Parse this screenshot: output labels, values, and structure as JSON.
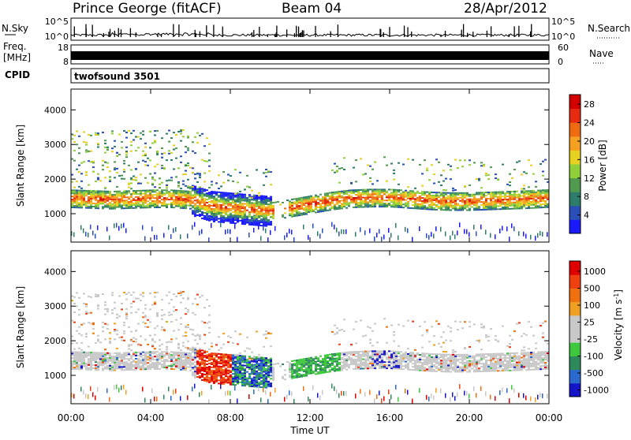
{
  "header": {
    "station": "Prince George (fitACF)",
    "beam": "Beam 04",
    "date": "28/Apr/2012"
  },
  "strips": {
    "nsky_label": "N.Sky",
    "nsearch_label": "N.Search",
    "nsky_ticks": [
      "10^5",
      "10^0"
    ],
    "nsearch_ticks": [
      "10^5",
      "10^0"
    ],
    "freq_label_1": "Freq.",
    "freq_label_2": "[MHz]",
    "freq_ticks": [
      "18",
      "8"
    ],
    "nave_label": "Nave",
    "nave_ticks": [
      "60",
      "0"
    ],
    "cpid_label": "CPID",
    "cpid_value": "twofsound 3501"
  },
  "chart_data": [
    {
      "type": "heatmap",
      "name": "power-panel",
      "ylabel": "Slant Range [km]",
      "x_ticks": [
        "00:00",
        "04:00",
        "08:00",
        "12:00",
        "16:00",
        "20:00",
        "00:00"
      ],
      "xlim_hours": [
        0,
        24
      ],
      "y_ticks": [
        1000,
        2000,
        3000,
        4000
      ],
      "ylim": [
        180,
        4600
      ],
      "colorbar": {
        "label": "Power [dB]",
        "ticks": [
          "4",
          "8",
          "12",
          "16",
          "20",
          "24",
          "28"
        ],
        "colors": [
          "#1a1aff",
          "#2a4fb8",
          "#2e7d6a",
          "#4f9a4f",
          "#8fcf3a",
          "#e6d020",
          "#f5a020",
          "#f06a10",
          "#e82a10",
          "#d40000"
        ]
      },
      "band_range_km": [
        [
          0,
          1420
        ],
        [
          1,
          1400
        ],
        [
          2,
          1380
        ],
        [
          3,
          1400
        ],
        [
          4,
          1420
        ],
        [
          5,
          1420
        ],
        [
          6,
          1380
        ],
        [
          7,
          1200
        ],
        [
          8,
          1150
        ],
        [
          9,
          1100
        ],
        [
          10,
          1050
        ],
        [
          11,
          1150
        ],
        [
          12,
          1250
        ],
        [
          13,
          1350
        ],
        [
          14,
          1420
        ],
        [
          15,
          1440
        ],
        [
          16,
          1440
        ],
        [
          17,
          1400
        ],
        [
          18,
          1360
        ],
        [
          19,
          1340
        ],
        [
          20,
          1340
        ],
        [
          21,
          1360
        ],
        [
          22,
          1380
        ],
        [
          23,
          1400
        ],
        [
          24,
          1430
        ]
      ]
    },
    {
      "type": "heatmap",
      "name": "velocity-panel",
      "ylabel": "Slant Range [km]",
      "xlabel": "Time UT",
      "x_ticks": [
        "00:00",
        "04:00",
        "08:00",
        "12:00",
        "16:00",
        "20:00",
        "00:00"
      ],
      "xlim_hours": [
        0,
        24
      ],
      "y_ticks": [
        1000,
        2000,
        3000,
        4000
      ],
      "ylim": [
        180,
        4600
      ],
      "colorbar": {
        "label": "Velocity [m s",
        "label_sup": "-1",
        "label_end": "]",
        "ticks": [
          "1000",
          "500",
          "100",
          "25",
          "-25",
          "-100",
          "-500",
          "-1000"
        ],
        "colors": [
          "#1414c8",
          "#2a6acf",
          "#2e8a5a",
          "#3dc83d",
          "#c8c8c8",
          "#c8c8c8",
          "#f0a020",
          "#f07010",
          "#f04010",
          "#e00000"
        ]
      }
    }
  ]
}
